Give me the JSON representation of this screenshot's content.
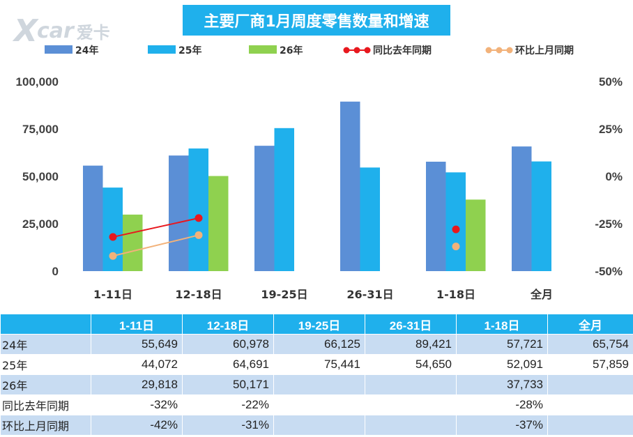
{
  "logo": {
    "mark": "X",
    "word": "car",
    "cn": "爱卡"
  },
  "title": "主要厂商1月周度零售数量和增速",
  "colors": {
    "s24": "#5b8fd6",
    "s25": "#1fb0ec",
    "s26": "#8fd14f",
    "yoy": "#e8181e",
    "mom": "#f2b27a",
    "header": "#1fb0ec",
    "shade": "#c8dcf2"
  },
  "chart_data": {
    "type": "bar",
    "title": "主要厂商1月周度零售数量和增速",
    "categories": [
      "1-11日",
      "12-18日",
      "19-25日",
      "26-31日",
      "1-18日",
      "全月"
    ],
    "series": [
      {
        "name": "24年",
        "type": "bar",
        "values": [
          55649,
          60978,
          66125,
          89421,
          57721,
          65754
        ]
      },
      {
        "name": "25年",
        "type": "bar",
        "values": [
          44072,
          64691,
          75441,
          54650,
          52091,
          57859
        ]
      },
      {
        "name": "26年",
        "type": "bar",
        "values": [
          29818,
          50171,
          null,
          null,
          37733,
          null
        ]
      },
      {
        "name": "同比去年同期",
        "type": "line",
        "axis": "right",
        "values": [
          -32,
          -22,
          null,
          null,
          -28,
          null
        ]
      },
      {
        "name": "环比上月同期",
        "type": "line",
        "axis": "right",
        "values": [
          -42,
          -31,
          null,
          null,
          -37,
          null
        ]
      }
    ],
    "ylim": [
      0,
      100000
    ],
    "yticks": [
      "100,000",
      "75,000",
      "50,000",
      "25,000",
      "0"
    ],
    "y2lim": [
      -50,
      50
    ],
    "y2ticks": [
      "50%",
      "25%",
      "0%",
      "-25%",
      "-50%"
    ],
    "legend_position": "top",
    "grid": false
  },
  "table": {
    "headers": [
      "",
      "1-11日",
      "12-18日",
      "19-25日",
      "26-31日",
      "1-18日",
      "全月"
    ],
    "rows": [
      [
        "24年",
        "55,649",
        "60,978",
        "66,125",
        "89,421",
        "57,721",
        "65,754"
      ],
      [
        "25年",
        "44,072",
        "64,691",
        "75,441",
        "54,650",
        "52,091",
        "57,859"
      ],
      [
        "26年",
        "29,818",
        "50,171",
        "",
        "",
        "37,733",
        ""
      ],
      [
        "同比去年同期",
        "-32%",
        "-22%",
        "",
        "",
        "-28%",
        ""
      ],
      [
        "环比上月同期",
        "-42%",
        "-31%",
        "",
        "",
        "-37%",
        ""
      ]
    ]
  }
}
